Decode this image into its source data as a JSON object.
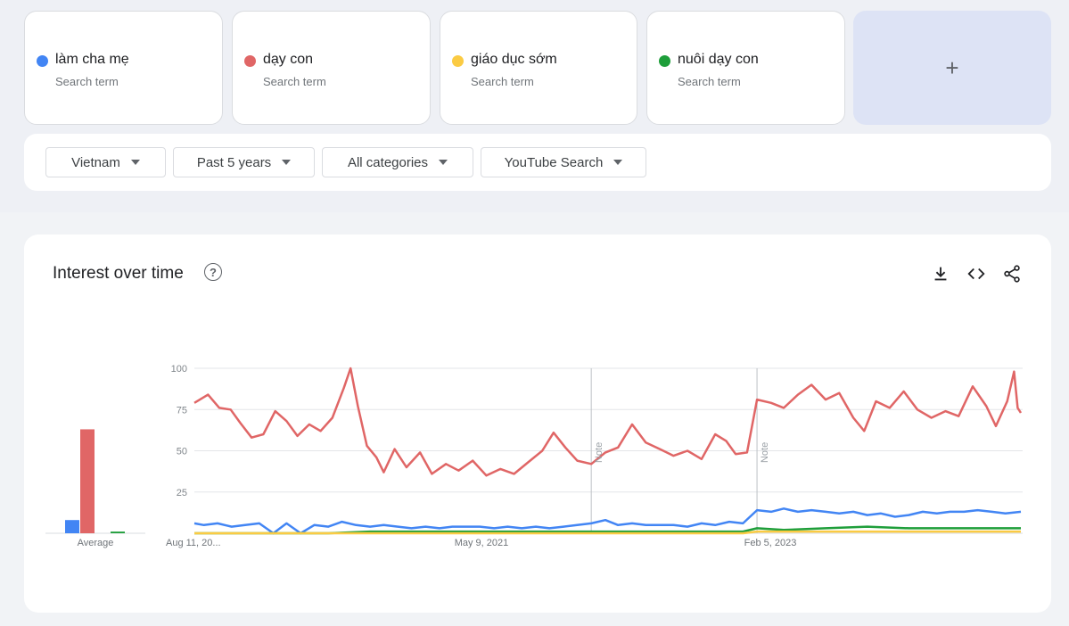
{
  "terms": [
    {
      "name": "làm cha mẹ",
      "sub": "Search term",
      "color": "#4285f4"
    },
    {
      "name": "dạy con",
      "sub": "Search term",
      "color": "#e06666"
    },
    {
      "name": "giáo dục sớm",
      "sub": "Search term",
      "color": "#fbcb43"
    },
    {
      "name": "nuôi dạy con",
      "sub": "Search term",
      "color": "#1e9e3a"
    }
  ],
  "add_term_label": "+",
  "filters": {
    "region": "Vietnam",
    "time_range": "Past 5 years",
    "category": "All categories",
    "property": "YouTube Search"
  },
  "chart_section": {
    "title": "Interest over time",
    "icons": [
      "help-icon",
      "download-icon",
      "embed-code-icon",
      "share-icon"
    ]
  },
  "chart_data": {
    "type": "line",
    "ylim": [
      0,
      100
    ],
    "y_ticks": [
      25,
      50,
      75,
      100
    ],
    "x_tick_labels": [
      "Aug 11, 20...",
      "May 9, 2021",
      "Feb 5, 2023"
    ],
    "x_range": [
      "2019-08-11",
      "2024-08-04"
    ],
    "notes": [
      {
        "date": "2022-01-01",
        "label": "Note"
      },
      {
        "date": "2023-01-01",
        "label": "Note"
      }
    ],
    "average": {
      "label": "Average",
      "values": [
        {
          "term": "làm cha mẹ",
          "value": 8
        },
        {
          "term": "dạy con",
          "value": 63
        },
        {
          "term": "giáo dục sớm",
          "value": 0
        },
        {
          "term": "nuôi dạy con",
          "value": 1
        }
      ]
    },
    "series": [
      {
        "name": "dạy con",
        "color": "#e06666",
        "points": [
          [
            "2019-08-11",
            79
          ],
          [
            "2019-09-10",
            84
          ],
          [
            "2019-10-05",
            76
          ],
          [
            "2019-10-30",
            75
          ],
          [
            "2019-11-20",
            67
          ],
          [
            "2019-12-15",
            58
          ],
          [
            "2020-01-10",
            60
          ],
          [
            "2020-02-05",
            74
          ],
          [
            "2020-03-01",
            68
          ],
          [
            "2020-03-25",
            59
          ],
          [
            "2020-04-20",
            66
          ],
          [
            "2020-05-15",
            62
          ],
          [
            "2020-06-10",
            70
          ],
          [
            "2020-07-05",
            88
          ],
          [
            "2020-07-20",
            100
          ],
          [
            "2020-08-05",
            77
          ],
          [
            "2020-08-25",
            53
          ],
          [
            "2020-09-15",
            46
          ],
          [
            "2020-10-01",
            37
          ],
          [
            "2020-10-25",
            51
          ],
          [
            "2020-11-20",
            40
          ],
          [
            "2020-12-20",
            49
          ],
          [
            "2021-01-15",
            36
          ],
          [
            "2021-02-15",
            42
          ],
          [
            "2021-03-15",
            38
          ],
          [
            "2021-04-15",
            44
          ],
          [
            "2021-05-15",
            35
          ],
          [
            "2021-06-15",
            39
          ],
          [
            "2021-07-15",
            36
          ],
          [
            "2021-08-15",
            43
          ],
          [
            "2021-09-15",
            50
          ],
          [
            "2021-10-10",
            61
          ],
          [
            "2021-11-05",
            52
          ],
          [
            "2021-12-01",
            44
          ],
          [
            "2022-01-01",
            42
          ],
          [
            "2022-02-01",
            49
          ],
          [
            "2022-03-01",
            52
          ],
          [
            "2022-04-01",
            66
          ],
          [
            "2022-05-01",
            55
          ],
          [
            "2022-06-01",
            51
          ],
          [
            "2022-07-01",
            47
          ],
          [
            "2022-08-01",
            50
          ],
          [
            "2022-09-01",
            45
          ],
          [
            "2022-10-01",
            60
          ],
          [
            "2022-10-25",
            56
          ],
          [
            "2022-11-15",
            48
          ],
          [
            "2022-12-10",
            49
          ],
          [
            "2023-01-01",
            81
          ],
          [
            "2023-02-01",
            79
          ],
          [
            "2023-03-01",
            76
          ],
          [
            "2023-04-01",
            84
          ],
          [
            "2023-05-01",
            90
          ],
          [
            "2023-06-01",
            81
          ],
          [
            "2023-07-01",
            85
          ],
          [
            "2023-08-01",
            70
          ],
          [
            "2023-08-25",
            62
          ],
          [
            "2023-09-20",
            80
          ],
          [
            "2023-10-20",
            76
          ],
          [
            "2023-11-20",
            86
          ],
          [
            "2023-12-20",
            75
          ],
          [
            "2024-01-20",
            70
          ],
          [
            "2024-02-20",
            74
          ],
          [
            "2024-03-20",
            71
          ],
          [
            "2024-04-20",
            89
          ],
          [
            "2024-05-20",
            77
          ],
          [
            "2024-06-10",
            65
          ],
          [
            "2024-07-05",
            80
          ],
          [
            "2024-07-20",
            98
          ],
          [
            "2024-07-28",
            76
          ],
          [
            "2024-08-04",
            73
          ]
        ]
      },
      {
        "name": "làm cha mẹ",
        "color": "#4285f4",
        "points": [
          [
            "2019-08-11",
            6
          ],
          [
            "2019-09-01",
            5
          ],
          [
            "2019-10-01",
            6
          ],
          [
            "2019-11-01",
            4
          ],
          [
            "2019-12-01",
            5
          ],
          [
            "2020-01-01",
            6
          ],
          [
            "2020-02-01",
            0
          ],
          [
            "2020-03-01",
            6
          ],
          [
            "2020-04-01",
            0
          ],
          [
            "2020-05-01",
            5
          ],
          [
            "2020-06-01",
            4
          ],
          [
            "2020-07-01",
            7
          ],
          [
            "2020-08-01",
            5
          ],
          [
            "2020-09-01",
            4
          ],
          [
            "2020-10-01",
            5
          ],
          [
            "2020-11-01",
            4
          ],
          [
            "2020-12-01",
            3
          ],
          [
            "2021-01-01",
            4
          ],
          [
            "2021-02-01",
            3
          ],
          [
            "2021-03-01",
            4
          ],
          [
            "2021-04-01",
            4
          ],
          [
            "2021-05-01",
            4
          ],
          [
            "2021-06-01",
            3
          ],
          [
            "2021-07-01",
            4
          ],
          [
            "2021-08-01",
            3
          ],
          [
            "2021-09-01",
            4
          ],
          [
            "2021-10-01",
            3
          ],
          [
            "2021-11-01",
            4
          ],
          [
            "2021-12-01",
            5
          ],
          [
            "2022-01-01",
            6
          ],
          [
            "2022-02-01",
            8
          ],
          [
            "2022-03-01",
            5
          ],
          [
            "2022-04-01",
            6
          ],
          [
            "2022-05-01",
            5
          ],
          [
            "2022-06-01",
            5
          ],
          [
            "2022-07-01",
            5
          ],
          [
            "2022-08-01",
            4
          ],
          [
            "2022-09-01",
            6
          ],
          [
            "2022-10-01",
            5
          ],
          [
            "2022-11-01",
            7
          ],
          [
            "2022-12-01",
            6
          ],
          [
            "2023-01-01",
            14
          ],
          [
            "2023-02-01",
            13
          ],
          [
            "2023-03-01",
            15
          ],
          [
            "2023-04-01",
            13
          ],
          [
            "2023-05-01",
            14
          ],
          [
            "2023-06-01",
            13
          ],
          [
            "2023-07-01",
            12
          ],
          [
            "2023-08-01",
            13
          ],
          [
            "2023-09-01",
            11
          ],
          [
            "2023-10-01",
            12
          ],
          [
            "2023-11-01",
            10
          ],
          [
            "2023-12-01",
            11
          ],
          [
            "2024-01-01",
            13
          ],
          [
            "2024-02-01",
            12
          ],
          [
            "2024-03-01",
            13
          ],
          [
            "2024-04-01",
            13
          ],
          [
            "2024-05-01",
            14
          ],
          [
            "2024-06-01",
            13
          ],
          [
            "2024-07-01",
            12
          ],
          [
            "2024-08-04",
            13
          ]
        ]
      },
      {
        "name": "nuôi dạy con",
        "color": "#1e9e3a",
        "points": [
          [
            "2019-08-11",
            0
          ],
          [
            "2020-06-01",
            0
          ],
          [
            "2020-09-01",
            1
          ],
          [
            "2021-06-01",
            1
          ],
          [
            "2022-06-01",
            1
          ],
          [
            "2022-12-01",
            1
          ],
          [
            "2023-01-01",
            3
          ],
          [
            "2023-03-01",
            2
          ],
          [
            "2023-06-01",
            3
          ],
          [
            "2023-09-01",
            4
          ],
          [
            "2023-12-01",
            3
          ],
          [
            "2024-03-01",
            3
          ],
          [
            "2024-06-01",
            3
          ],
          [
            "2024-08-04",
            3
          ]
        ]
      },
      {
        "name": "giáo dục sớm",
        "color": "#fbcb43",
        "points": [
          [
            "2019-08-11",
            0
          ],
          [
            "2022-12-01",
            0
          ],
          [
            "2023-01-01",
            1
          ],
          [
            "2024-08-04",
            1
          ]
        ]
      }
    ]
  }
}
